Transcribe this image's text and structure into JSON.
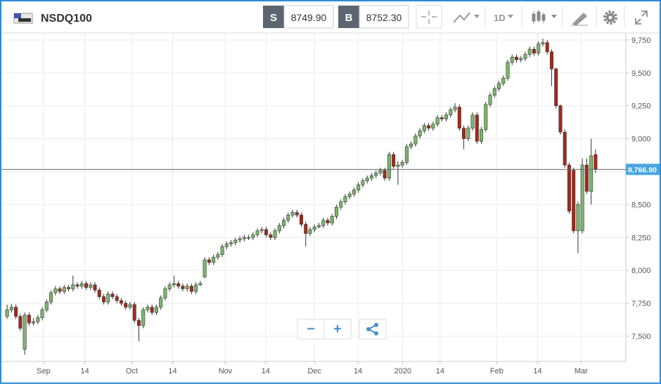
{
  "toolbar": {
    "symbol": "NSDQ100",
    "sell_label": "S",
    "sell_price": "8749.90",
    "buy_label": "B",
    "buy_price": "8752.30",
    "interval": "1D"
  },
  "zoom": {
    "minus": "−",
    "plus": "+"
  },
  "chart_data": {
    "type": "candlestick",
    "up_color": "#7bb86b",
    "down_color": "#a8281b",
    "last_price": {
      "value": 8766.9,
      "label": "8,766.90"
    },
    "grid": true,
    "xlim": [
      -1.3,
      140.9
    ],
    "xticks": [
      {
        "value": 8.3,
        "label": "Sep"
      },
      {
        "value": 17.7,
        "label": "14"
      },
      {
        "value": 28.4,
        "label": "Oct"
      },
      {
        "value": 37.7,
        "label": "14"
      },
      {
        "value": 49.7,
        "label": "Nov"
      },
      {
        "value": 58.9,
        "label": "14"
      },
      {
        "value": 70,
        "label": "Dec"
      },
      {
        "value": 79.9,
        "label": "14"
      },
      {
        "value": 90.1,
        "label": "2020"
      },
      {
        "value": 98.6,
        "label": "14"
      },
      {
        "value": 111.5,
        "label": "Feb"
      },
      {
        "value": 120.8,
        "label": "14"
      },
      {
        "value": 130.7,
        "label": "Mar"
      }
    ],
    "ylim": [
      7308,
      9803
    ],
    "yticks": [
      {
        "value": 7500,
        "label": "7,500"
      },
      {
        "value": 7750,
        "label": "7,750"
      },
      {
        "value": 8000,
        "label": "8,000"
      },
      {
        "value": 8250,
        "label": "8,250"
      },
      {
        "value": 8500,
        "label": "8,500"
      },
      {
        "value": 8750,
        "label": "8,750"
      },
      {
        "value": 9000,
        "label": "9,000"
      },
      {
        "value": 9250,
        "label": "9,250"
      },
      {
        "value": 9500,
        "label": "9,500"
      },
      {
        "value": 9750,
        "label": "9,750"
      }
    ],
    "ohlc": [
      [
        7650,
        7740,
        7630,
        7700
      ],
      [
        7700,
        7745,
        7680,
        7720
      ],
      [
        7720,
        7740,
        7630,
        7650
      ],
      [
        7650,
        7670,
        7540,
        7560
      ],
      [
        7400,
        7680,
        7360,
        7660
      ],
      [
        7660,
        7680,
        7580,
        7600
      ],
      [
        7600,
        7640,
        7580,
        7610
      ],
      [
        7610,
        7660,
        7590,
        7640
      ],
      [
        7640,
        7720,
        7620,
        7700
      ],
      [
        7700,
        7780,
        7680,
        7760
      ],
      [
        7760,
        7850,
        7740,
        7830
      ],
      [
        7830,
        7880,
        7810,
        7860
      ],
      [
        7860,
        7880,
        7820,
        7840
      ],
      [
        7840,
        7890,
        7820,
        7870
      ],
      [
        7870,
        7890,
        7840,
        7860
      ],
      [
        7860,
        7960,
        7840,
        7890
      ],
      [
        7890,
        7910,
        7860,
        7880
      ],
      [
        7880,
        7920,
        7860,
        7900
      ],
      [
        7900,
        7920,
        7850,
        7870
      ],
      [
        7870,
        7910,
        7850,
        7890
      ],
      [
        7890,
        7910,
        7830,
        7850
      ],
      [
        7850,
        7870,
        7780,
        7800
      ],
      [
        7800,
        7820,
        7740,
        7760
      ],
      [
        7760,
        7840,
        7740,
        7820
      ],
      [
        7820,
        7840,
        7780,
        7800
      ],
      [
        7800,
        7820,
        7750,
        7770
      ],
      [
        7770,
        7790,
        7730,
        7750
      ],
      [
        7750,
        7770,
        7700,
        7720
      ],
      [
        7720,
        7760,
        7700,
        7740
      ],
      [
        7740,
        7760,
        7600,
        7620
      ],
      [
        7620,
        7640,
        7460,
        7580
      ],
      [
        7580,
        7720,
        7560,
        7700
      ],
      [
        7700,
        7740,
        7680,
        7720
      ],
      [
        7720,
        7740,
        7660,
        7680
      ],
      [
        7680,
        7740,
        7660,
        7720
      ],
      [
        7720,
        7810,
        7700,
        7790
      ],
      [
        7790,
        7880,
        7770,
        7860
      ],
      [
        7860,
        7910,
        7840,
        7890
      ],
      [
        7890,
        7960,
        7870,
        7900
      ],
      [
        7900,
        7920,
        7860,
        7880
      ],
      [
        7880,
        7900,
        7840,
        7860
      ],
      [
        7860,
        7900,
        7840,
        7880
      ],
      [
        7880,
        7900,
        7820,
        7840
      ],
      [
        7840,
        7910,
        7820,
        7890
      ],
      [
        7890,
        7920,
        7880,
        7900
      ],
      [
        7950,
        8100,
        7940,
        8080
      ],
      [
        8080,
        8100,
        8040,
        8060
      ],
      [
        8060,
        8120,
        8040,
        8100
      ],
      [
        8100,
        8140,
        8080,
        8120
      ],
      [
        8120,
        8200,
        8100,
        8180
      ],
      [
        8180,
        8220,
        8160,
        8200
      ],
      [
        8200,
        8230,
        8180,
        8210
      ],
      [
        8210,
        8250,
        8190,
        8230
      ],
      [
        8230,
        8260,
        8210,
        8240
      ],
      [
        8240,
        8270,
        8220,
        8250
      ],
      [
        8245,
        8270,
        8230,
        8250
      ],
      [
        8250,
        8290,
        8230,
        8270
      ],
      [
        8270,
        8320,
        8250,
        8300
      ],
      [
        8300,
        8330,
        8280,
        8310
      ],
      [
        8310,
        8330,
        8250,
        8270
      ],
      [
        8270,
        8290,
        8230,
        8250
      ],
      [
        8250,
        8320,
        8230,
        8300
      ],
      [
        8300,
        8360,
        8280,
        8340
      ],
      [
        8340,
        8400,
        8320,
        8380
      ],
      [
        8380,
        8440,
        8360,
        8420
      ],
      [
        8420,
        8460,
        8400,
        8440
      ],
      [
        8440,
        8460,
        8400,
        8420
      ],
      [
        8420,
        8440,
        8330,
        8350
      ],
      [
        8350,
        8370,
        8180,
        8280
      ],
      [
        8280,
        8330,
        8260,
        8310
      ],
      [
        8310,
        8350,
        8290,
        8330
      ],
      [
        8330,
        8360,
        8320,
        8340
      ],
      [
        8340,
        8400,
        8320,
        8380
      ],
      [
        8380,
        8400,
        8340,
        8360
      ],
      [
        8360,
        8430,
        8340,
        8410
      ],
      [
        8410,
        8500,
        8390,
        8480
      ],
      [
        8480,
        8540,
        8460,
        8520
      ],
      [
        8520,
        8580,
        8500,
        8560
      ],
      [
        8560,
        8600,
        8540,
        8580
      ],
      [
        8580,
        8630,
        8560,
        8610
      ],
      [
        8610,
        8670,
        8590,
        8650
      ],
      [
        8650,
        8700,
        8630,
        8680
      ],
      [
        8680,
        8720,
        8660,
        8700
      ],
      [
        8700,
        8740,
        8680,
        8720
      ],
      [
        8720,
        8760,
        8700,
        8740
      ],
      [
        8740,
        8780,
        8720,
        8760
      ],
      [
        8760,
        8780,
        8680,
        8700
      ],
      [
        8700,
        8900,
        8680,
        8880
      ],
      [
        8880,
        8900,
        8770,
        8790
      ],
      [
        8790,
        8830,
        8650,
        8800
      ],
      [
        8800,
        8840,
        8780,
        8820
      ],
      [
        8820,
        8960,
        8800,
        8940
      ],
      [
        8940,
        8980,
        8920,
        8960
      ],
      [
        8960,
        9040,
        8940,
        9020
      ],
      [
        9020,
        9080,
        9000,
        9060
      ],
      [
        9060,
        9120,
        9040,
        9100
      ],
      [
        9100,
        9120,
        9060,
        9080
      ],
      [
        9080,
        9130,
        9060,
        9110
      ],
      [
        9110,
        9180,
        9090,
        9160
      ],
      [
        9160,
        9180,
        9130,
        9150
      ],
      [
        9150,
        9200,
        9130,
        9180
      ],
      [
        9180,
        9240,
        9160,
        9220
      ],
      [
        9220,
        9270,
        9200,
        9240
      ],
      [
        9240,
        9260,
        9060,
        9080
      ],
      [
        9080,
        9100,
        8920,
        9000
      ],
      [
        9000,
        9100,
        8980,
        9080
      ],
      [
        9080,
        9200,
        9060,
        9180
      ],
      [
        9180,
        9200,
        8960,
        8980
      ],
      [
        8980,
        9090,
        8960,
        9070
      ],
      [
        9070,
        9280,
        9050,
        9260
      ],
      [
        9260,
        9350,
        9240,
        9330
      ],
      [
        9330,
        9400,
        9310,
        9380
      ],
      [
        9380,
        9440,
        9360,
        9420
      ],
      [
        9420,
        9480,
        9400,
        9460
      ],
      [
        9460,
        9600,
        9440,
        9580
      ],
      [
        9580,
        9640,
        9560,
        9620
      ],
      [
        9620,
        9640,
        9580,
        9600
      ],
      [
        9600,
        9630,
        9580,
        9610
      ],
      [
        9610,
        9660,
        9590,
        9640
      ],
      [
        9640,
        9700,
        9620,
        9680
      ],
      [
        9680,
        9700,
        9630,
        9650
      ],
      [
        9650,
        9740,
        9630,
        9720
      ],
      [
        9720,
        9760,
        9700,
        9730
      ],
      [
        9730,
        9750,
        9640,
        9660
      ],
      [
        9660,
        9680,
        9400,
        9530
      ],
      [
        9530,
        9540,
        9230,
        9250
      ],
      [
        9250,
        9260,
        9030,
        9050
      ],
      [
        9050,
        9070,
        8780,
        8800
      ],
      [
        8800,
        8820,
        8430,
        8450
      ],
      [
        8760,
        8780,
        8280,
        8300
      ],
      [
        8300,
        8520,
        8130,
        8500
      ],
      [
        8300,
        8850,
        8280,
        8800
      ],
      [
        8800,
        8850,
        8580,
        8600
      ],
      [
        8600,
        9000,
        8500,
        8870
      ],
      [
        8880,
        8920,
        8740,
        8770
      ]
    ]
  }
}
